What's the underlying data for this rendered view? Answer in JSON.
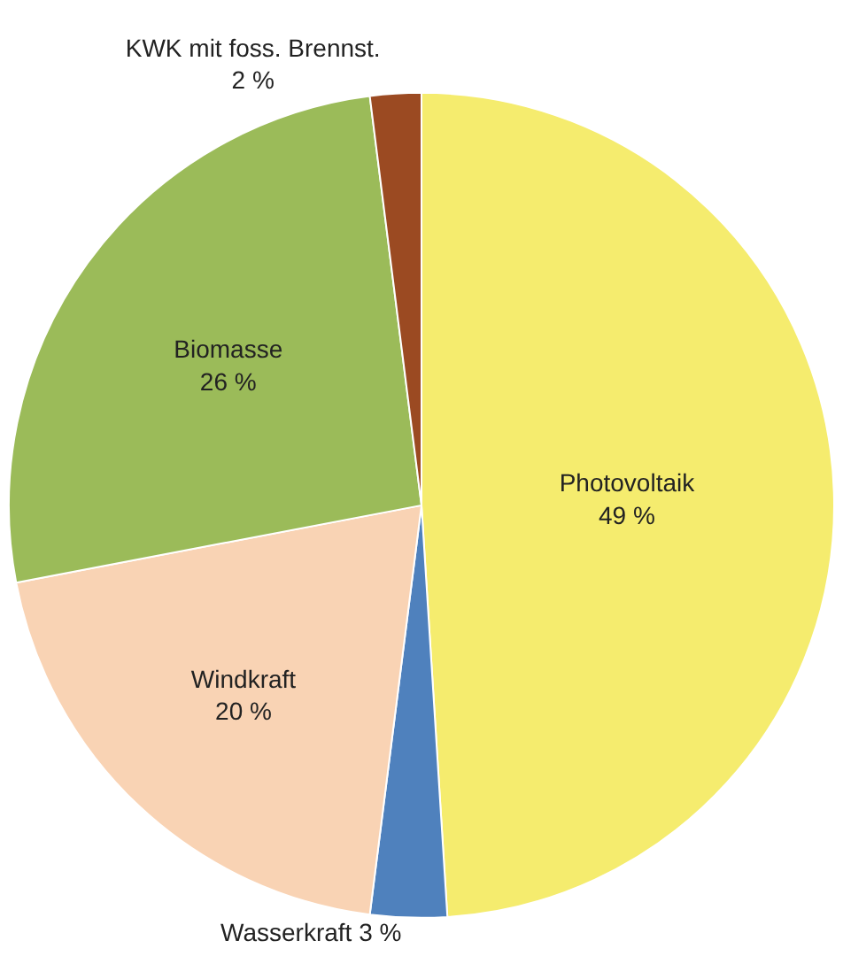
{
  "chart_data": {
    "type": "pie",
    "categories": [
      "Photovoltaik",
      "Wasserkraft",
      "Windkraft",
      "Biomasse",
      "KWK mit foss. Brennst."
    ],
    "values": [
      49,
      3,
      20,
      26,
      2
    ],
    "value_labels": [
      "49 %",
      "3 %",
      "20 %",
      "26 %",
      "2 %"
    ],
    "colors": [
      "#f5ec6e",
      "#4f81bd",
      "#f9d3b4",
      "#9bbb59",
      "#9b4a22"
    ],
    "legend": false
  }
}
